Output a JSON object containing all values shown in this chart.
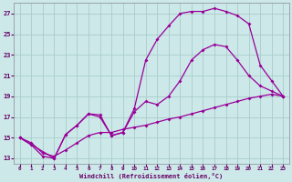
{
  "background_color": "#cce8e8",
  "grid_color": "#aacccc",
  "line_color": "#990099",
  "xlabel": "Windchill (Refroidissement éolien,°C)",
  "xlabel_color": "#660066",
  "tick_color": "#660066",
  "xlim_min": -0.5,
  "xlim_max": 23.5,
  "ylim_min": 12.5,
  "ylim_max": 28.0,
  "yticks": [
    13,
    15,
    17,
    19,
    21,
    23,
    25,
    27
  ],
  "xticks": [
    0,
    1,
    2,
    3,
    4,
    5,
    6,
    7,
    8,
    9,
    10,
    11,
    12,
    13,
    14,
    15,
    16,
    17,
    18,
    19,
    20,
    21,
    22,
    23
  ],
  "line1_x": [
    0,
    1,
    2,
    3,
    4,
    5,
    6,
    7,
    8,
    9,
    10,
    11,
    12,
    13,
    14,
    15,
    16,
    17,
    18,
    19,
    20,
    21,
    22,
    23
  ],
  "line1_y": [
    15.0,
    14.5,
    13.5,
    13.2,
    13.8,
    14.5,
    15.2,
    15.5,
    15.5,
    15.8,
    16.0,
    16.2,
    16.5,
    16.8,
    17.0,
    17.3,
    17.6,
    17.9,
    18.2,
    18.5,
    18.8,
    19.0,
    19.2,
    19.0
  ],
  "line2_x": [
    0,
    1,
    2,
    3,
    4,
    5,
    6,
    7,
    8,
    9,
    10,
    11,
    12,
    13,
    14,
    15,
    16,
    17,
    18,
    19,
    20,
    21,
    22,
    23
  ],
  "line2_y": [
    15.0,
    14.3,
    13.2,
    13.0,
    15.3,
    16.2,
    17.3,
    17.2,
    15.2,
    15.5,
    17.5,
    18.5,
    18.2,
    19.0,
    20.5,
    22.5,
    23.5,
    24.0,
    23.8,
    22.5,
    21.0,
    20.0,
    19.5,
    19.0
  ],
  "line3_x": [
    0,
    3,
    4,
    5,
    6,
    7,
    8,
    9,
    10,
    11,
    12,
    13,
    14,
    15,
    16,
    17,
    18,
    19,
    20,
    21,
    22,
    23
  ],
  "line3_y": [
    15.0,
    13.0,
    15.3,
    16.2,
    17.3,
    17.0,
    15.2,
    15.5,
    17.8,
    22.5,
    24.5,
    25.8,
    27.0,
    27.2,
    27.2,
    27.5,
    27.2,
    26.8,
    26.0,
    22.0,
    20.5,
    19.0
  ]
}
